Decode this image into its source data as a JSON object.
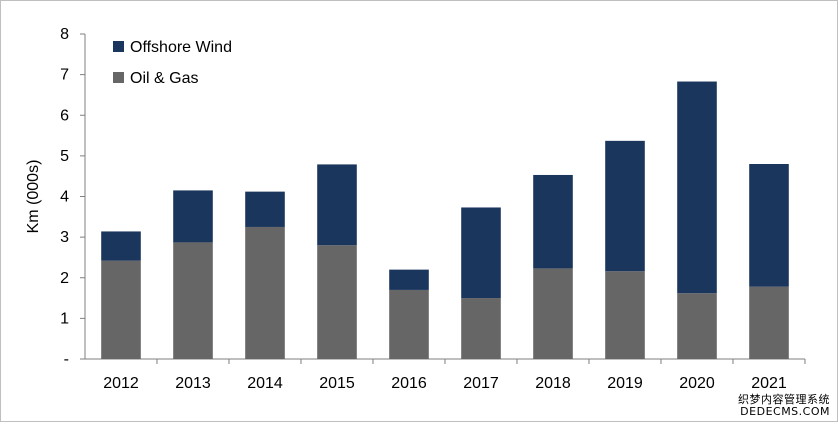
{
  "chart_data": {
    "type": "bar",
    "stacked": true,
    "categories": [
      "2012",
      "2013",
      "2014",
      "2015",
      "2016",
      "2017",
      "2018",
      "2019",
      "2020",
      "2021"
    ],
    "series": [
      {
        "name": "Oil & Gas",
        "color": "#666666",
        "values": [
          2.42,
          2.87,
          3.25,
          2.8,
          1.7,
          1.5,
          2.23,
          2.16,
          1.62,
          1.78
        ]
      },
      {
        "name": "Offshore Wind",
        "color": "#1b365d",
        "values": [
          0.72,
          1.28,
          0.87,
          1.99,
          0.5,
          2.23,
          2.3,
          3.21,
          5.21,
          3.02
        ]
      }
    ],
    "ylabel": "Km (000s)",
    "ylim": [
      0,
      8
    ],
    "yticks": [
      "-",
      "1",
      "2",
      "3",
      "4",
      "5",
      "6",
      "7",
      "8"
    ],
    "legend_position": "top-left",
    "grid": false
  },
  "watermark": {
    "line1": "织梦内容管理系统",
    "line2": "DEDECMS.COM"
  }
}
